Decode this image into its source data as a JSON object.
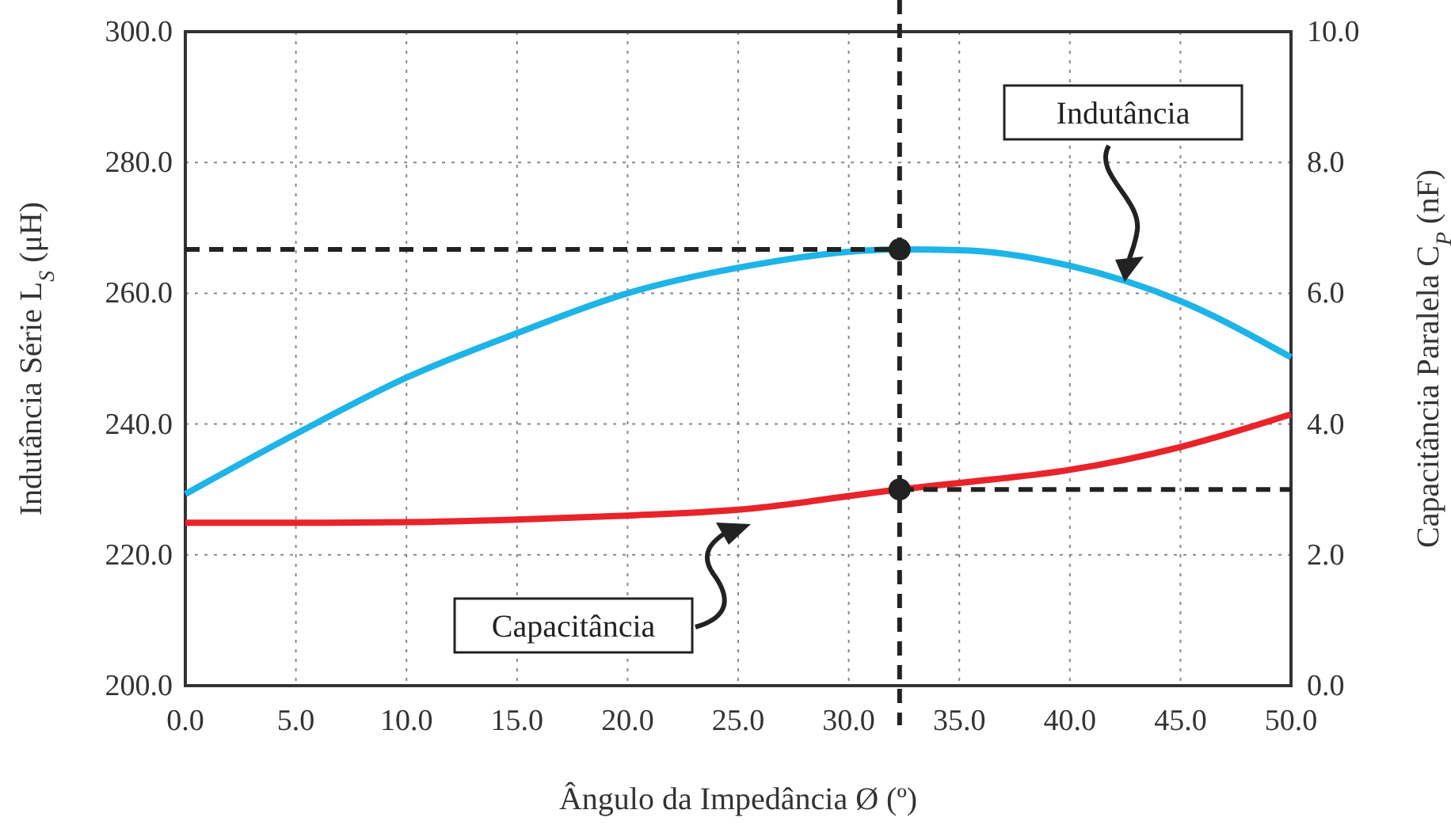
{
  "chart_data": {
    "type": "line",
    "xlabel": "Ângulo da Impedância Ø (º)",
    "ylabel": "Indutância Série L$_{S}$ (μH)",
    "y2label": "Capacitância Paralela C$_{P}$ (nF)",
    "xlim": [
      0,
      50
    ],
    "xticks": [
      {
        "value": 0,
        "label": "0.0"
      },
      {
        "value": 5,
        "label": "5.0"
      },
      {
        "value": 10,
        "label": "10.0"
      },
      {
        "value": 15,
        "label": "15.0"
      },
      {
        "value": 20,
        "label": "20.0"
      },
      {
        "value": 25,
        "label": "25.0"
      },
      {
        "value": 30,
        "label": "30.0"
      },
      {
        "value": 35,
        "label": "35.0"
      },
      {
        "value": 40,
        "label": "40.0"
      },
      {
        "value": 45,
        "label": "45.0"
      },
      {
        "value": 50,
        "label": "50.0"
      }
    ],
    "ylim": [
      200,
      300
    ],
    "yticks": [
      {
        "value": 200,
        "label": "200.0"
      },
      {
        "value": 220,
        "label": "220.0"
      },
      {
        "value": 240,
        "label": "240.0"
      },
      {
        "value": 260,
        "label": "260.0"
      },
      {
        "value": 280,
        "label": "280.0"
      },
      {
        "value": 300,
        "label": "300.0"
      }
    ],
    "y2lim": [
      0,
      10
    ],
    "y2ticks": [
      {
        "value": 0,
        "label": "0.0"
      },
      {
        "value": 2,
        "label": "2.0"
      },
      {
        "value": 4,
        "label": "4.0"
      },
      {
        "value": 6,
        "label": "6.0"
      },
      {
        "value": 8,
        "label": "8.0"
      },
      {
        "value": 10,
        "label": "10.0"
      }
    ],
    "grid": true,
    "marker": "none",
    "line_style": "solid",
    "x": [
      0,
      5,
      10,
      15,
      20,
      25,
      32.3,
      35,
      40,
      45,
      50
    ],
    "series": [
      {
        "name": "Indutância",
        "color": "#1eb4e8",
        "values": [
          229.3,
          238.5,
          247.1,
          253.9,
          260,
          263.9,
          266.7,
          266.6,
          264.2,
          258.8,
          250.2
        ]
      },
      {
        "name": "Capacitância",
        "color": "#e8242a",
        "axis": "y2",
        "values": [
          2.49,
          2.49,
          2.5,
          2.54,
          2.6,
          2.69,
          3.0,
          3.1,
          3.3,
          3.65,
          4.15
        ]
      },
      {
        "type": "line",
        "color": "#222222",
        "line_style": "dashed",
        "x": [
          0,
          32.3
        ],
        "values": [
          266.7,
          266.7
        ]
      },
      {
        "type": "line",
        "color": "#222222",
        "line_style": "dashed",
        "axis": "y2",
        "x": [
          32.3,
          50
        ],
        "values": [
          3.0,
          3.0
        ]
      },
      {
        "type": "scatter",
        "color": "#222222",
        "marker": "circle",
        "x": [
          32.3
        ],
        "values": [
          266.7
        ]
      },
      {
        "type": "scatter",
        "color": "#222222",
        "marker": "circle",
        "axis": "y2",
        "x": [
          32.3
        ],
        "values": [
          3.0
        ]
      }
    ],
    "ref_lines": [
      {
        "axis": "x",
        "value": 32.3,
        "color": "#222222",
        "line_style": "dashed"
      }
    ]
  }
}
